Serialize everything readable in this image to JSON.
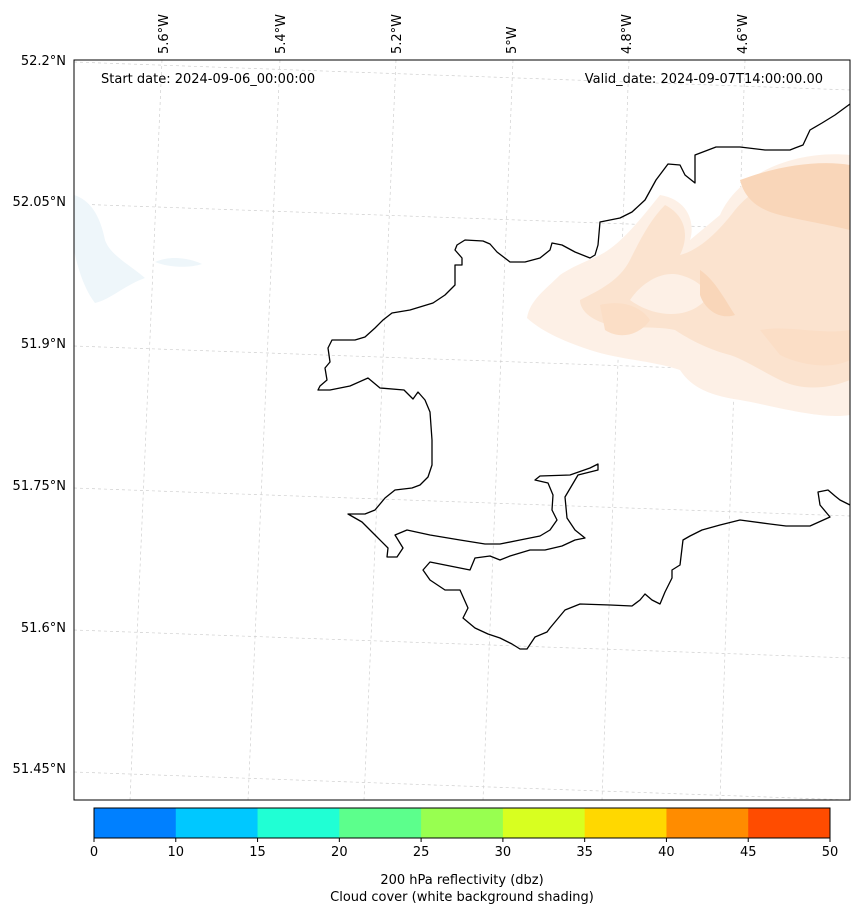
{
  "map": {
    "lat_labels": [
      "52.2°N",
      "52.05°N",
      "51.9°N",
      "51.75°N",
      "51.6°N",
      "51.45°N"
    ],
    "lon_labels": [
      "5.6°W",
      "5.4°W",
      "5.2°W",
      "5°W",
      "4.8°W",
      "4.6°W"
    ],
    "start_date": "Start date: 2024-09-06_00:00:00",
    "valid_date": "Valid_date: 2024-09-07T14:00:00.00",
    "coastline_color": "#000000",
    "cloud_shading_color": "#fbd9bf",
    "gridline_color": "#cccccc"
  },
  "colorbar": {
    "ticks": [
      "0",
      "10",
      "15",
      "20",
      "25",
      "30",
      "35",
      "40",
      "45",
      "50"
    ],
    "colors": [
      "#0080ff",
      "#00c8ff",
      "#20ffd4",
      "#5cff8c",
      "#98ff50",
      "#d8ff20",
      "#ffd800",
      "#ff8c00",
      "#ff4c00"
    ],
    "label_line1": "200 hPa reflectivity (dbz)",
    "label_line2": "Cloud cover (white background shading)"
  }
}
